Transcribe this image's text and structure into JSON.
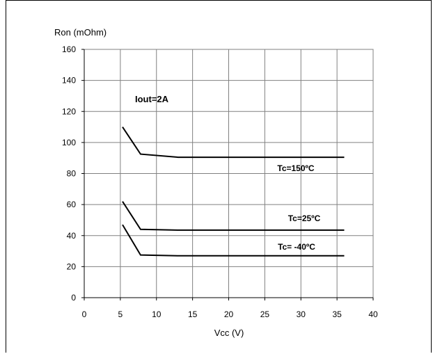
{
  "chart_data": {
    "type": "line",
    "title": "",
    "xlabel": "Vcc (V)",
    "ylabel": "Ron (mOhm)",
    "xlim": [
      0,
      40
    ],
    "ylim": [
      0,
      160
    ],
    "x_ticks": [
      "0",
      "5",
      "10",
      "15",
      "20",
      "25",
      "30",
      "35",
      "40"
    ],
    "y_ticks": [
      "0",
      "20",
      "40",
      "60",
      "80",
      "100",
      "120",
      "140",
      "160"
    ],
    "grid": true,
    "annotation": "Iout=2A",
    "series": [
      {
        "name": "Tc=150ºC",
        "x": [
          5.3,
          7.8,
          13,
          36
        ],
        "y": [
          110,
          92.5,
          90.5,
          90.5
        ]
      },
      {
        "name": "Tc=25ºC",
        "x": [
          5.3,
          7.8,
          13,
          36
        ],
        "y": [
          62,
          44,
          43.5,
          43.5
        ]
      },
      {
        "name": "Tc= -40ºC",
        "x": [
          5.3,
          7.8,
          13,
          36
        ],
        "y": [
          47,
          27.5,
          27,
          27
        ]
      }
    ]
  }
}
